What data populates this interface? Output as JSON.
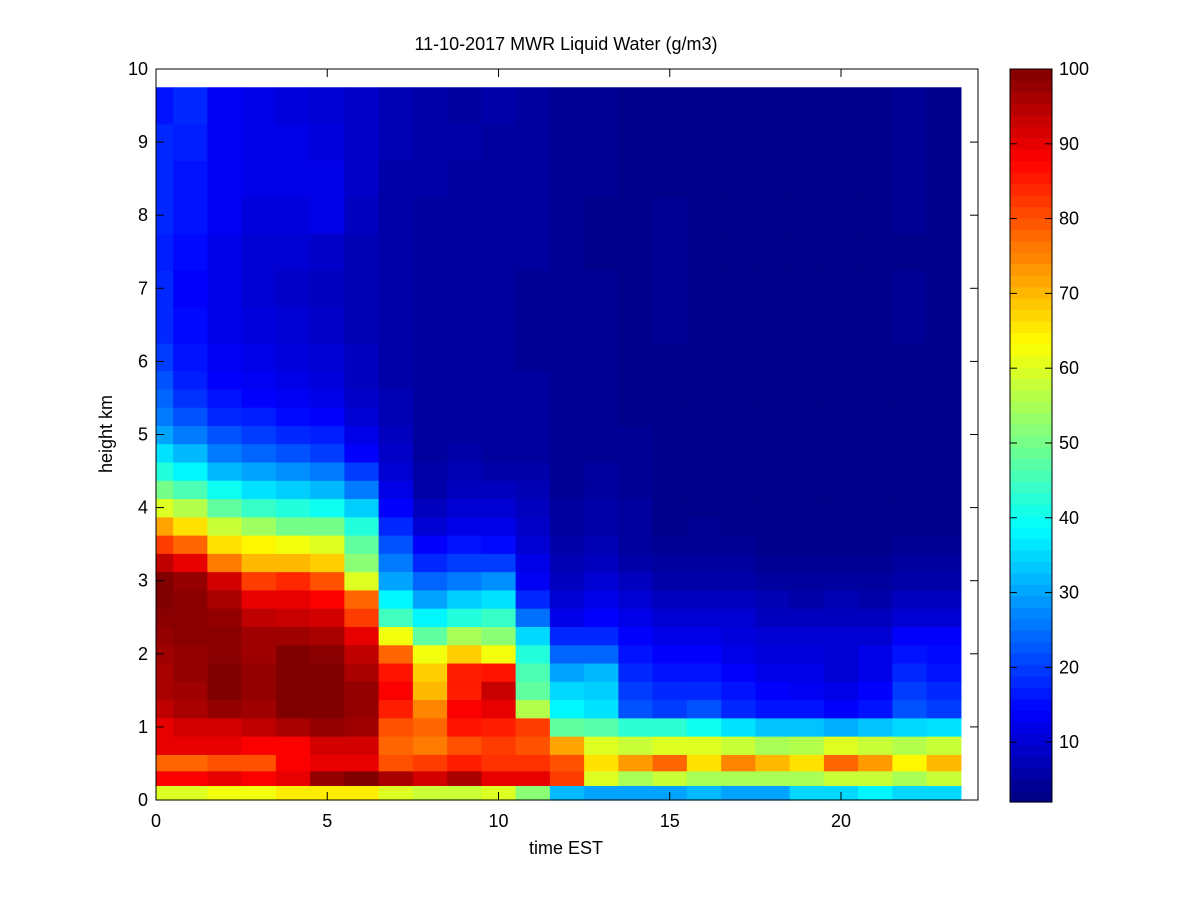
{
  "chart_data": {
    "type": "heatmap",
    "title": "11-10-2017 MWR Liquid Water (g/m3)",
    "xlabel": "time EST",
    "ylabel": "height km",
    "xlim": [
      0,
      24
    ],
    "ylim": [
      0,
      10
    ],
    "xticks": [
      0,
      5,
      10,
      15,
      20
    ],
    "yticks": [
      0,
      1,
      2,
      3,
      4,
      5,
      6,
      7,
      8,
      9,
      10
    ],
    "colorbar": {
      "range": [
        2,
        100
      ],
      "ticks": [
        10,
        20,
        30,
        40,
        50,
        60,
        70,
        80,
        90,
        100
      ],
      "colormap": "jet"
    },
    "x_centers": [
      0,
      1,
      2,
      3,
      4,
      5,
      6,
      7,
      8,
      9,
      10,
      11,
      12,
      13,
      14,
      15,
      16,
      17,
      18,
      19,
      20,
      21,
      22,
      23
    ],
    "y_levels": [
      0.1,
      0.3,
      0.5,
      0.75,
      1.0,
      1.25,
      1.5,
      1.75,
      2.0,
      2.25,
      2.5,
      2.75,
      3.0,
      3.25,
      3.5,
      3.75,
      4.0,
      4.25,
      4.5,
      4.75,
      5.0,
      5.25,
      5.5,
      5.75,
      6.0,
      6.5,
      7.0,
      7.5,
      8.0,
      8.5,
      9.0,
      9.5
    ],
    "y_top": 9.75,
    "z": [
      [
        60,
        60,
        62,
        62,
        65,
        65,
        65,
        60,
        58,
        58,
        60,
        52,
        32,
        30,
        30,
        30,
        32,
        30,
        30,
        35,
        35,
        38,
        35,
        35
      ],
      [
        88,
        88,
        90,
        88,
        90,
        98,
        100,
        96,
        92,
        96,
        90,
        90,
        82,
        60,
        55,
        58,
        55,
        55,
        55,
        55,
        58,
        58,
        55,
        58
      ],
      [
        78,
        78,
        80,
        80,
        88,
        90,
        90,
        80,
        82,
        85,
        83,
        83,
        80,
        66,
        73,
        78,
        66,
        75,
        70,
        66,
        78,
        73,
        64,
        70
      ],
      [
        90,
        90,
        90,
        88,
        88,
        92,
        92,
        78,
        76,
        80,
        82,
        80,
        72,
        60,
        58,
        60,
        60,
        58,
        55,
        56,
        60,
        58,
        56,
        58
      ],
      [
        90,
        92,
        92,
        94,
        96,
        98,
        97,
        80,
        78,
        86,
        85,
        82,
        48,
        47,
        43,
        43,
        40,
        36,
        33,
        33,
        31,
        33,
        35,
        36
      ],
      [
        94,
        96,
        98,
        97,
        100,
        100,
        98,
        85,
        75,
        88,
        90,
        56,
        38,
        36,
        22,
        20,
        22,
        18,
        16,
        16,
        14,
        16,
        22,
        20
      ],
      [
        96,
        97,
        100,
        98,
        100,
        100,
        98,
        88,
        70,
        85,
        93,
        48,
        35,
        34,
        20,
        18,
        18,
        16,
        14,
        13,
        12,
        14,
        20,
        18
      ],
      [
        96,
        98,
        100,
        98,
        100,
        100,
        96,
        86,
        68,
        85,
        86,
        46,
        30,
        32,
        18,
        16,
        16,
        14,
        12,
        12,
        10,
        12,
        18,
        16
      ],
      [
        97,
        98,
        99,
        97,
        100,
        99,
        94,
        78,
        62,
        68,
        62,
        42,
        24,
        24,
        16,
        14,
        14,
        12,
        11,
        11,
        10,
        12,
        16,
        15
      ],
      [
        98,
        99,
        99,
        97,
        97,
        96,
        90,
        62,
        48,
        55,
        52,
        35,
        18,
        18,
        14,
        12,
        12,
        11,
        10,
        10,
        10,
        10,
        14,
        14
      ],
      [
        99,
        99,
        98,
        94,
        93,
        92,
        82,
        45,
        38,
        42,
        44,
        25,
        12,
        14,
        12,
        10,
        10,
        10,
        8,
        8,
        8,
        8,
        10,
        10
      ],
      [
        100,
        99,
        96,
        90,
        90,
        88,
        78,
        38,
        30,
        34,
        36,
        18,
        10,
        12,
        10,
        8,
        8,
        8,
        7,
        6,
        7,
        6,
        8,
        8
      ],
      [
        100,
        98,
        92,
        82,
        84,
        80,
        60,
        30,
        24,
        26,
        28,
        13,
        8,
        10,
        8,
        6,
        6,
        6,
        5,
        5,
        5,
        5,
        6,
        6
      ],
      [
        94,
        90,
        76,
        70,
        70,
        68,
        52,
        26,
        18,
        20,
        20,
        12,
        7,
        8,
        6,
        5,
        5,
        5,
        4,
        4,
        4,
        4,
        5,
        5
      ],
      [
        82,
        78,
        66,
        64,
        62,
        60,
        48,
        22,
        14,
        16,
        15,
        10,
        6,
        7,
        5,
        4,
        4,
        4,
        3,
        3,
        3,
        3,
        4,
        4
      ],
      [
        72,
        66,
        58,
        54,
        50,
        50,
        42,
        18,
        10,
        12,
        12,
        9,
        5,
        6,
        5,
        3,
        4,
        3,
        3,
        3,
        3,
        3,
        3,
        3
      ],
      [
        60,
        56,
        48,
        44,
        42,
        40,
        34,
        14,
        8,
        10,
        10,
        8,
        5,
        6,
        5,
        3,
        3,
        3,
        3,
        3,
        3,
        3,
        3,
        3
      ],
      [
        50,
        46,
        40,
        36,
        34,
        32,
        26,
        12,
        6,
        8,
        8,
        7,
        4,
        5,
        4,
        3,
        3,
        3,
        3,
        3,
        3,
        3,
        3,
        3
      ],
      [
        42,
        38,
        32,
        30,
        28,
        26,
        20,
        10,
        6,
        7,
        6,
        6,
        4,
        5,
        4,
        3,
        3,
        3,
        3,
        3,
        3,
        3,
        3,
        3
      ],
      [
        36,
        32,
        26,
        24,
        22,
        20,
        14,
        9,
        5,
        6,
        5,
        5,
        4,
        4,
        4,
        3,
        3,
        3,
        3,
        3,
        3,
        3,
        3,
        3
      ],
      [
        30,
        26,
        22,
        20,
        18,
        17,
        12,
        8,
        5,
        5,
        5,
        5,
        4,
        4,
        4,
        3,
        3,
        3,
        3,
        3,
        3,
        3,
        3,
        3
      ],
      [
        26,
        22,
        18,
        17,
        15,
        14,
        10,
        7,
        5,
        5,
        5,
        5,
        4,
        4,
        3,
        3,
        3,
        3,
        3,
        3,
        3,
        3,
        3,
        3
      ],
      [
        24,
        19,
        16,
        14,
        13,
        12,
        9,
        7,
        5,
        5,
        5,
        5,
        4,
        4,
        3,
        3,
        3,
        3,
        3,
        3,
        3,
        3,
        3,
        3
      ],
      [
        22,
        17,
        14,
        13,
        12,
        11,
        8,
        6,
        5,
        5,
        5,
        5,
        4,
        4,
        3,
        3,
        3,
        3,
        3,
        3,
        3,
        3,
        3,
        3
      ],
      [
        20,
        16,
        13,
        12,
        11,
        10,
        8,
        6,
        5,
        5,
        5,
        4,
        4,
        4,
        3,
        3,
        3,
        3,
        3,
        3,
        3,
        3,
        3,
        3
      ],
      [
        18,
        15,
        12,
        11,
        10,
        9,
        7,
        6,
        5,
        5,
        5,
        4,
        4,
        4,
        3,
        4,
        3,
        3,
        3,
        3,
        3,
        3,
        4,
        3
      ],
      [
        18,
        14,
        12,
        10,
        9,
        8,
        7,
        6,
        5,
        5,
        5,
        4,
        4,
        4,
        3,
        4,
        3,
        3,
        3,
        3,
        3,
        3,
        4,
        3
      ],
      [
        17,
        15,
        12,
        10,
        10,
        9,
        7,
        6,
        5,
        5,
        5,
        5,
        4,
        3,
        3,
        4,
        3,
        3,
        3,
        3,
        3,
        3,
        3,
        3
      ],
      [
        18,
        16,
        13,
        11,
        11,
        12,
        8,
        6,
        5,
        5,
        5,
        5,
        4,
        3,
        3,
        4,
        3,
        3,
        3,
        3,
        3,
        3,
        4,
        3
      ],
      [
        18,
        16,
        13,
        12,
        12,
        12,
        9,
        6,
        6,
        5,
        5,
        5,
        4,
        4,
        3,
        3,
        3,
        3,
        3,
        3,
        3,
        3,
        4,
        3
      ],
      [
        18,
        17,
        13,
        12,
        12,
        11,
        9,
        7,
        6,
        6,
        5,
        5,
        4,
        4,
        3,
        3,
        3,
        3,
        3,
        3,
        3,
        3,
        4,
        3
      ],
      [
        16,
        18,
        13,
        12,
        11,
        10,
        9,
        7,
        6,
        5,
        6,
        5,
        4,
        4,
        3,
        3,
        3,
        3,
        3,
        3,
        3,
        3,
        4,
        3
      ]
    ]
  }
}
